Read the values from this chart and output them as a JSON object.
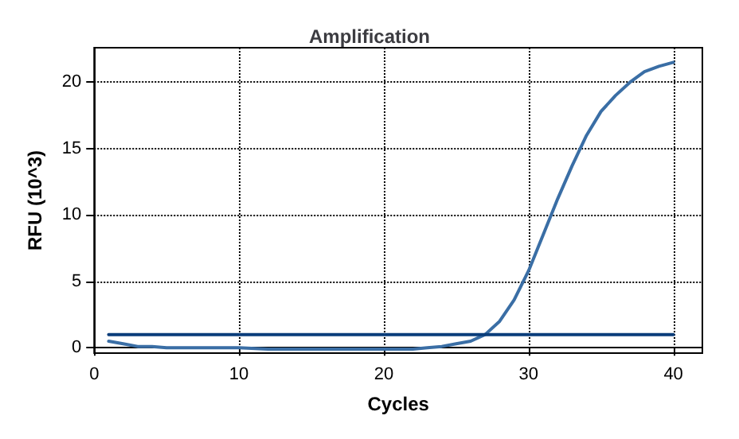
{
  "chart_data": {
    "type": "line",
    "title": "Amplification",
    "xlabel": "Cycles",
    "ylabel": "RFU (10^3)",
    "xlim": [
      0,
      42
    ],
    "xticks": [
      0,
      10,
      20,
      30,
      40
    ],
    "ylim": [
      -0.4,
      22.6
    ],
    "yticks": [
      0,
      5,
      10,
      15,
      20
    ],
    "grid": true,
    "marker": "none",
    "line_style": "solid",
    "series": [
      {
        "color": "#3a6ea5",
        "x": [
          1,
          2,
          3,
          4,
          5,
          6,
          8,
          10,
          12,
          14,
          16,
          18,
          20,
          22,
          23,
          24,
          25,
          26,
          27,
          28,
          29,
          30,
          31,
          32,
          33,
          34,
          35,
          36,
          37,
          38,
          39,
          40
        ],
        "values": [
          0.5,
          0.3,
          0.1,
          0.1,
          0,
          0,
          0,
          0,
          -0.1,
          -0.1,
          -0.1,
          -0.1,
          -0.1,
          -0.1,
          0,
          0.1,
          0.3,
          0.5,
          1.0,
          2.0,
          3.6,
          5.8,
          8.5,
          11.2,
          13.7,
          16,
          17.8,
          19,
          20,
          20.8,
          21.2,
          21.5
        ]
      },
      {
        "color": "#0a3d7a",
        "x": [
          1,
          40
        ],
        "values": [
          1.0,
          1.0
        ]
      }
    ]
  }
}
